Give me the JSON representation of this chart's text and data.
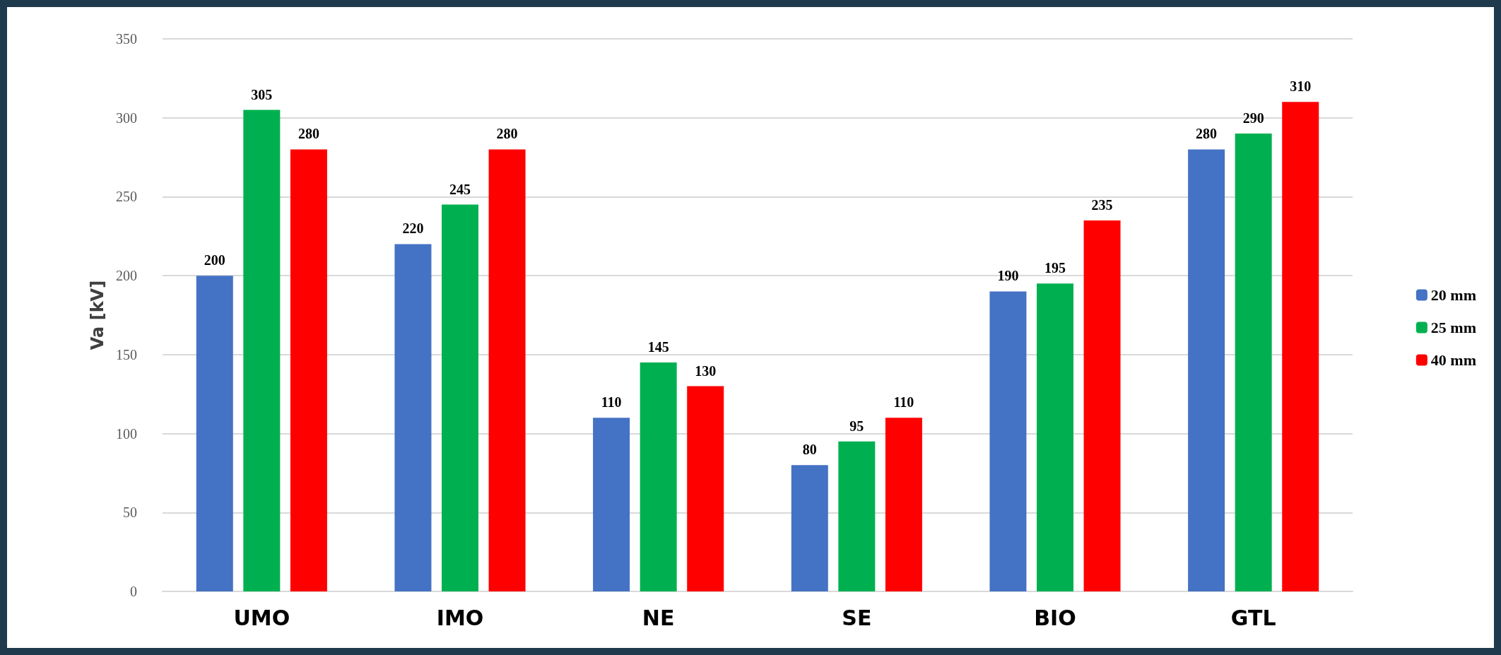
{
  "chart_data": {
    "type": "bar",
    "ylabel": "Va [kV]",
    "categories": [
      "UMO",
      "IMO",
      "NE",
      "SE",
      "BIO",
      "GTL"
    ],
    "series": [
      {
        "name": "20 mm",
        "color": "#4472c4",
        "values": [
          200,
          220,
          110,
          80,
          190,
          280
        ]
      },
      {
        "name": "25 mm",
        "color": "#00b050",
        "values": [
          305,
          245,
          145,
          95,
          195,
          290
        ]
      },
      {
        "name": "40 mm",
        "color": "#ff0000",
        "values": [
          280,
          280,
          130,
          110,
          235,
          310
        ]
      }
    ],
    "ylim": [
      0,
      350
    ],
    "yticks": [
      0,
      50,
      100,
      150,
      200,
      250,
      300,
      350
    ],
    "grid": "y",
    "legend": "right",
    "data_labels": true
  }
}
